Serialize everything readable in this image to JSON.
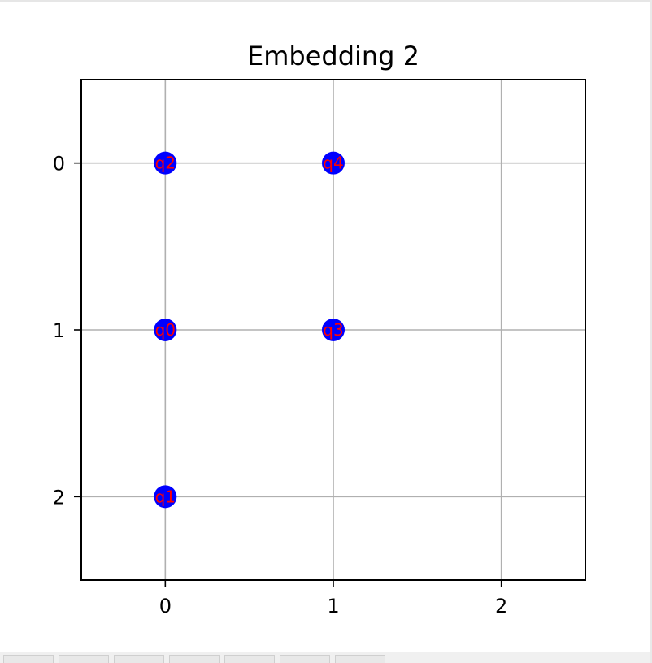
{
  "chart_data": {
    "type": "scatter",
    "title": "Embedding 2",
    "xlabel": "",
    "ylabel": "",
    "xlim": [
      -0.5,
      2.5
    ],
    "ylim": [
      2.5,
      -0.5
    ],
    "y_inverted": true,
    "grid": true,
    "xticks": [
      "0",
      "1",
      "2"
    ],
    "yticks": [
      "0",
      "1",
      "2"
    ],
    "x_tick_values": [
      0,
      1,
      2
    ],
    "y_tick_values": [
      0,
      1,
      2
    ],
    "marker_color": "#0000ff",
    "label_color": "#ff0000",
    "points": [
      {
        "x": 0,
        "y": 0,
        "label": "q2"
      },
      {
        "x": 1,
        "y": 0,
        "label": "q4"
      },
      {
        "x": 0,
        "y": 1,
        "label": "q0"
      },
      {
        "x": 1,
        "y": 1,
        "label": "q3"
      },
      {
        "x": 0,
        "y": 2,
        "label": "q1"
      }
    ]
  },
  "taskbar": {
    "tab_count": 7
  }
}
